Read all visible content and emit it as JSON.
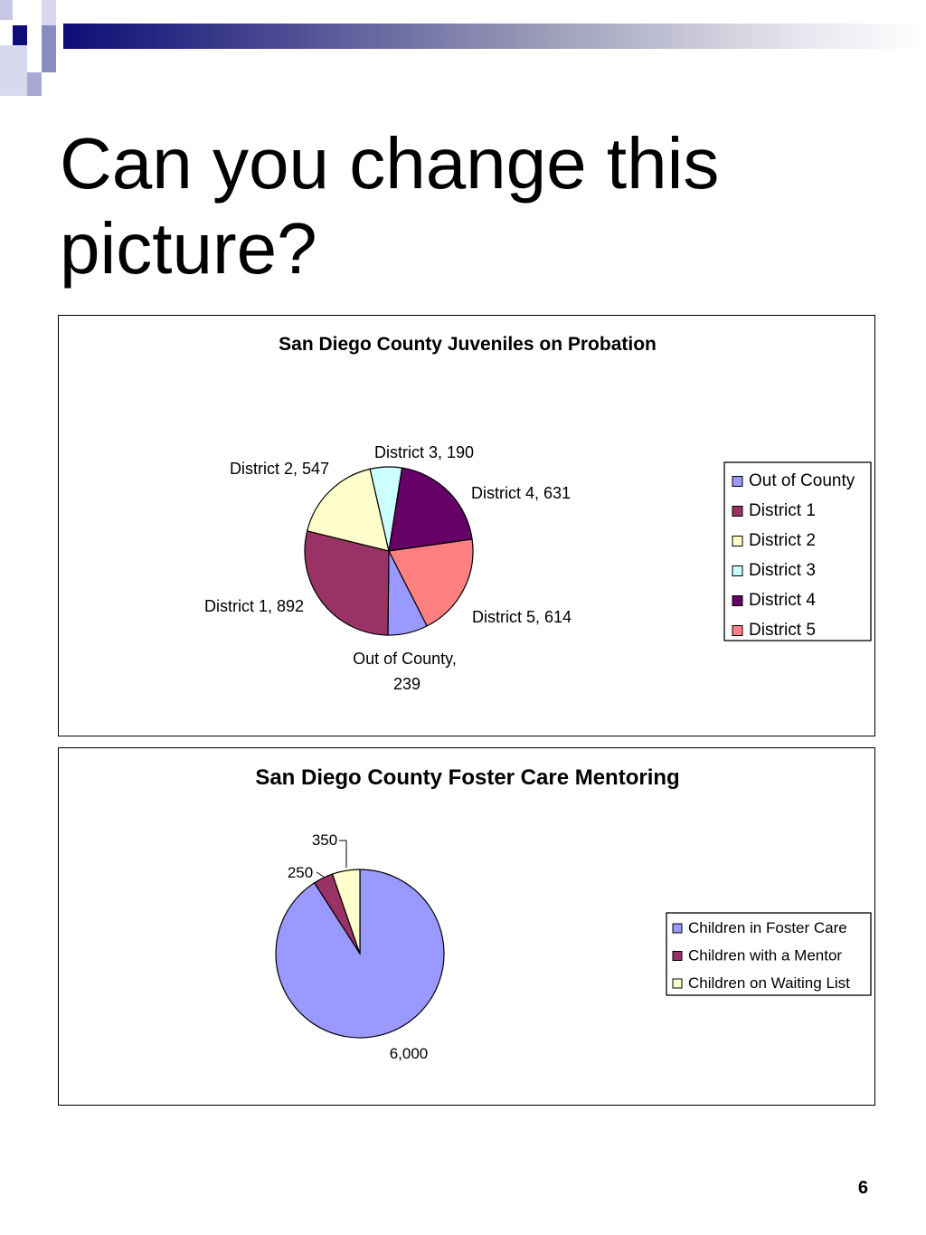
{
  "slide": {
    "title": "Can you change this picture?",
    "page_number": "6"
  },
  "chart_data": [
    {
      "type": "pie",
      "title": "San Diego County Juveniles on Probation",
      "categories": [
        "Out of County",
        "District 1",
        "District 2",
        "District 3",
        "District 4",
        "District 5"
      ],
      "values": [
        239,
        892,
        547,
        190,
        631,
        614
      ],
      "colors": [
        "#9999ff",
        "#993366",
        "#ffffcc",
        "#ccffff",
        "#660066",
        "#ff8080"
      ],
      "data_labels": [
        "Out of County, 239",
        "District 1, 892",
        "District 2, 547",
        "District 3, 190",
        "District 4, 631",
        "District 5, 614"
      ],
      "legend_position": "right"
    },
    {
      "type": "pie",
      "title": "San Diego County Foster Care Mentoring",
      "categories": [
        "Children in Foster Care",
        "Children with a Mentor",
        "Children on Waiting List"
      ],
      "values": [
        6000,
        250,
        350
      ],
      "colors": [
        "#9999ff",
        "#993366",
        "#ffffcc"
      ],
      "data_labels": [
        "6,000",
        "250",
        "350"
      ],
      "legend_position": "right"
    }
  ]
}
